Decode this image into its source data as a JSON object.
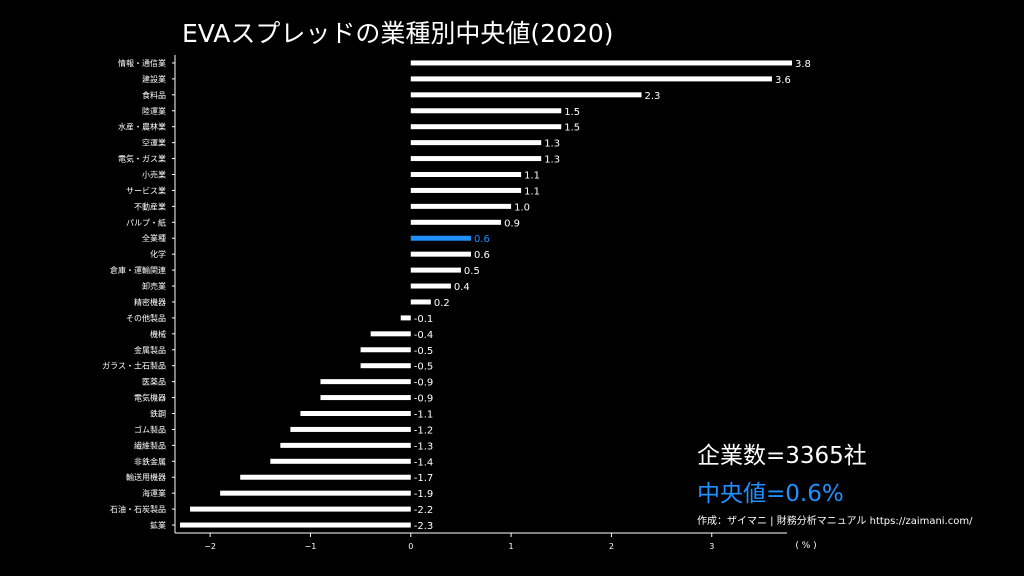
{
  "header": {
    "title": "EVAスプレッドの業種別中央値(2020)"
  },
  "summary": {
    "company_count": "企業数=3365社",
    "median": "中央値=0.6%",
    "credit": "作成：ザイマニ | 財務分析マニュアル https://zaimani.com/"
  },
  "colors": {
    "background": "#000000",
    "bar": "#ffffff",
    "highlight": "#1e90ff"
  },
  "chart_data": {
    "type": "bar",
    "orientation": "horizontal",
    "title": "EVAスプレッドの業種別中央値(2020)",
    "xlabel": "( % )",
    "ylabel": "",
    "xlim": [
      -2.35,
      3.75
    ],
    "xticks": [
      -2,
      -1,
      0,
      1,
      2,
      3
    ],
    "xtick_labels": [
      "−2",
      "−1",
      "0",
      "1",
      "2",
      "3"
    ],
    "highlight_category": "全業種",
    "categories": [
      "情報・通信業",
      "建設業",
      "食料品",
      "陸運業",
      "水産・農林業",
      "空運業",
      "電気・ガス業",
      "小売業",
      "サービス業",
      "不動産業",
      "パルプ・紙",
      "全業種",
      "化学",
      "倉庫・運輸関連",
      "卸売業",
      "精密機器",
      "その他製品",
      "機械",
      "金属製品",
      "ガラス・土石製品",
      "医薬品",
      "電気機器",
      "鉄鋼",
      "ゴム製品",
      "繊維製品",
      "非鉄金属",
      "輸送用機器",
      "海運業",
      "石油・石炭製品",
      "鉱業"
    ],
    "values": [
      3.8,
      3.6,
      2.3,
      1.5,
      1.5,
      1.3,
      1.3,
      1.1,
      1.1,
      1.0,
      0.9,
      0.6,
      0.6,
      0.5,
      0.4,
      0.2,
      -0.1,
      -0.4,
      -0.5,
      -0.5,
      -0.9,
      -0.9,
      -1.1,
      -1.2,
      -1.3,
      -1.4,
      -1.7,
      -1.9,
      -2.2,
      -2.3
    ],
    "value_labels": [
      "3.8",
      "3.6",
      "2.3",
      "1.5",
      "1.5",
      "1.3",
      "1.3",
      "1.1",
      "1.1",
      "1.0",
      "0.9",
      "0.6",
      "0.6",
      "0.5",
      "0.4",
      "0.2",
      "-0.1",
      "-0.4",
      "-0.5",
      "-0.5",
      "-0.9",
      "-0.9",
      "-1.1",
      "-1.2",
      "-1.3",
      "-1.4",
      "-1.7",
      "-1.9",
      "-2.2",
      "-2.3"
    ]
  }
}
